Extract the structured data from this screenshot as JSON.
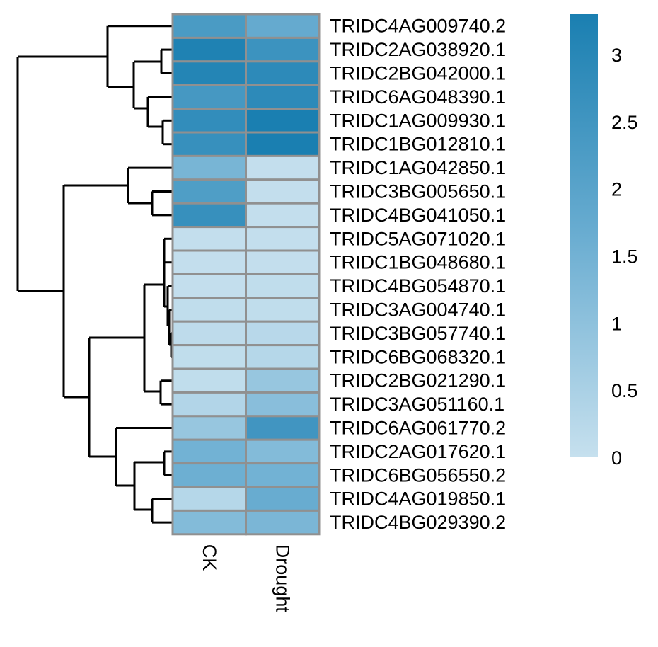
{
  "chart_data": {
    "type": "heatmap",
    "title": "",
    "columns": [
      "CK",
      "Drought"
    ],
    "rows": [
      "TRIDC4AG009740.2",
      "TRIDC2AG038920.1",
      "TRIDC2BG042000.1",
      "TRIDC6AG048390.1",
      "TRIDC1AG009930.1",
      "TRIDC1BG012810.1",
      "TRIDC1AG042850.1",
      "TRIDC3BG005650.1",
      "TRIDC4BG041050.1",
      "TRIDC5AG071020.1",
      "TRIDC1BG048680.1",
      "TRIDC4BG054870.1",
      "TRIDC3AG004740.1",
      "TRIDC3BG057740.1",
      "TRIDC6BG068320.1",
      "TRIDC2BG021290.1",
      "TRIDC3AG051160.1",
      "TRIDC6AG061770.2",
      "TRIDC2AG017620.1",
      "TRIDC6BG056550.2",
      "TRIDC4AG019850.1",
      "TRIDC4BG029390.2"
    ],
    "values": [
      [
        2.3,
        1.75
      ],
      [
        3.2,
        2.6
      ],
      [
        3.1,
        2.9
      ],
      [
        2.4,
        2.9
      ],
      [
        2.8,
        3.3
      ],
      [
        2.7,
        3.3
      ],
      [
        1.4,
        0.05
      ],
      [
        2.2,
        0.05
      ],
      [
        2.7,
        0.05
      ],
      [
        0.05,
        0.05
      ],
      [
        0.05,
        0.05
      ],
      [
        0.05,
        0.1
      ],
      [
        0.1,
        0.1
      ],
      [
        0.15,
        0.25
      ],
      [
        0.1,
        0.3
      ],
      [
        0.1,
        0.85
      ],
      [
        0.35,
        1.1
      ],
      [
        0.85,
        2.5
      ],
      [
        1.5,
        1.2
      ],
      [
        1.6,
        1.5
      ],
      [
        0.3,
        1.7
      ],
      [
        1.2,
        1.35
      ]
    ],
    "color_scale": {
      "min": 0,
      "max": 3.3,
      "low_color": "#c6e0ee",
      "mid_color": "#6aadd1",
      "high_color": "#1a7fb1",
      "ticks": [
        "0",
        "0.5",
        "1",
        "1.5",
        "2",
        "2.5",
        "3"
      ]
    },
    "legend_position": "top-right",
    "row_dendrogram": "left"
  }
}
